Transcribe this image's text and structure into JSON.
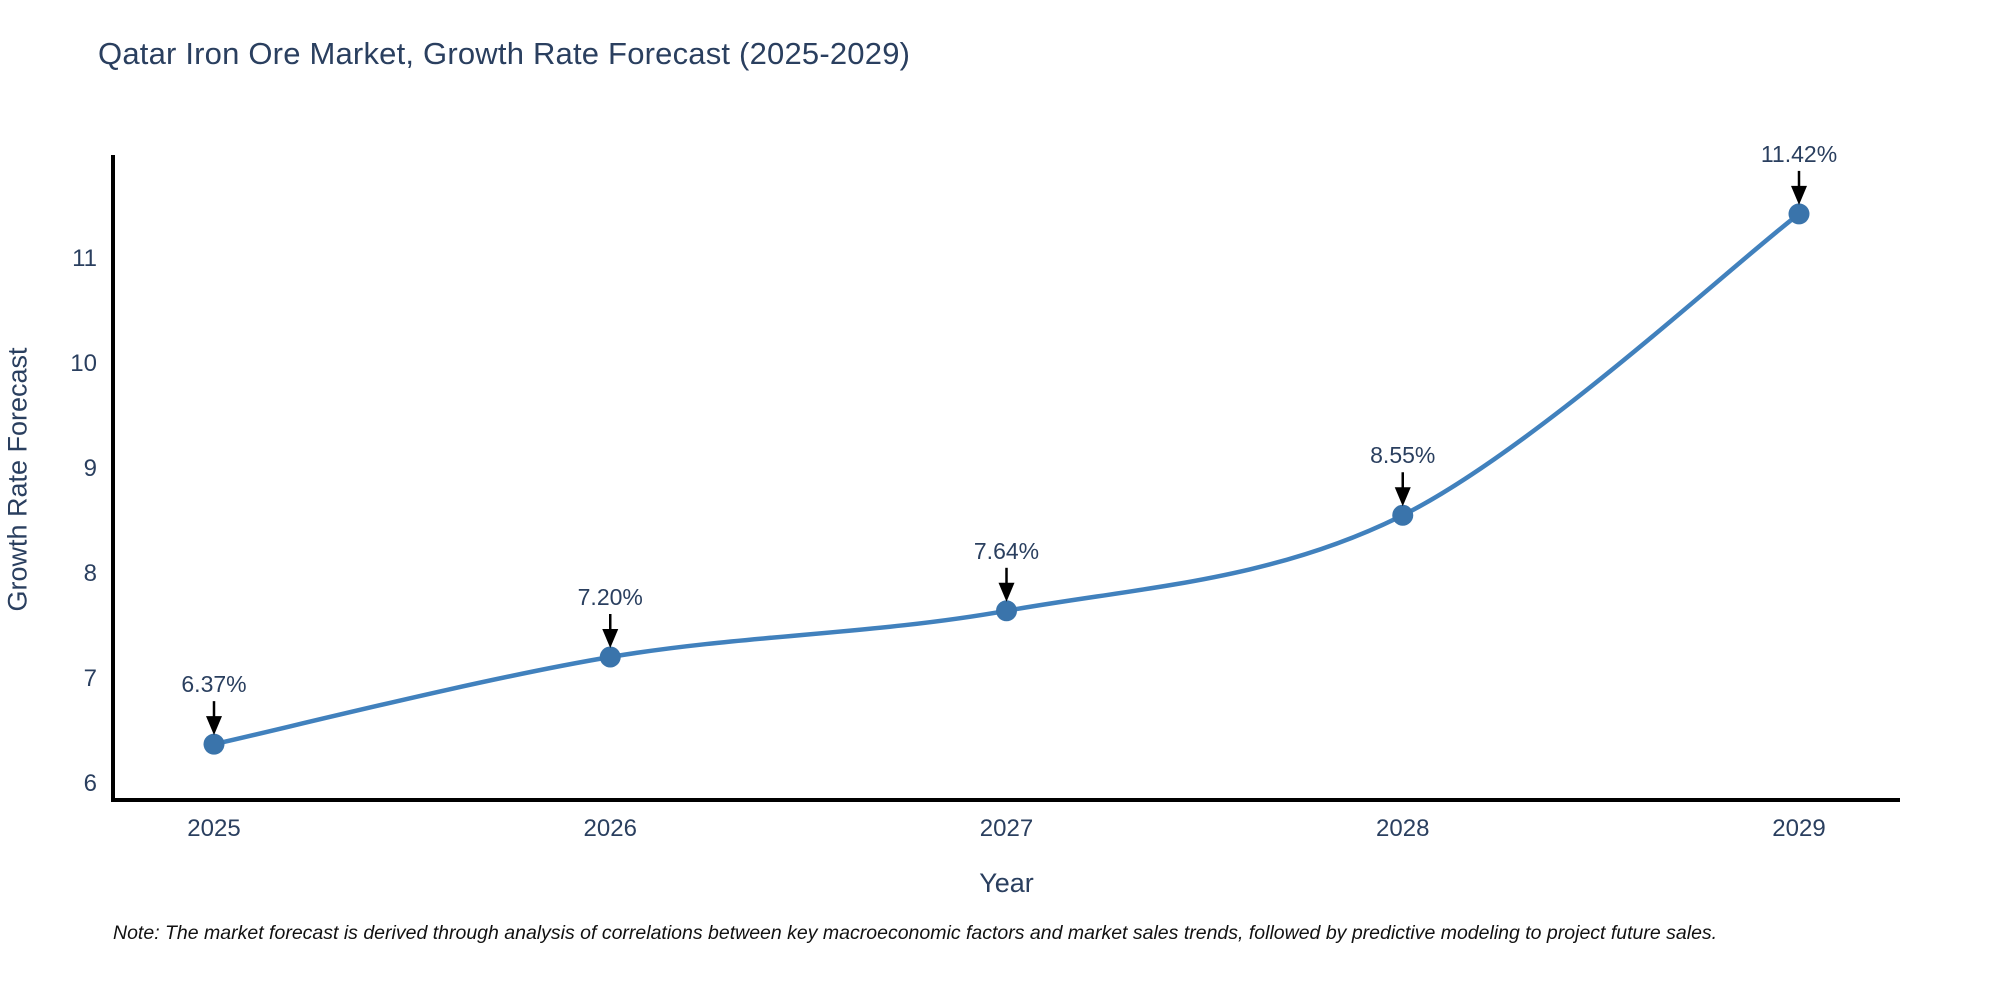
{
  "title": "Qatar Iron Ore Market, Growth Rate Forecast (2025-2029)",
  "footnote": "Note: The market forecast is derived through analysis of correlations between key macroeconomic factors and market sales trends, followed by predictive modeling to project future sales.",
  "chart_data": {
    "type": "line",
    "title": "Qatar Iron Ore Market, Growth Rate Forecast (2025-2029)",
    "categories": [
      "2025",
      "2026",
      "2027",
      "2028",
      "2029"
    ],
    "values": [
      6.37,
      7.2,
      7.64,
      8.55,
      11.42
    ],
    "point_labels": [
      "6.37%",
      "7.20%",
      "7.64%",
      "8.55%",
      "11.42%"
    ],
    "xlabel": "Year",
    "ylabel": "Growth Rate Forecast",
    "yticks": [
      6,
      7,
      8,
      9,
      10,
      11
    ],
    "ylim": [
      5.838,
      11.981
    ],
    "grid": false,
    "legend": "none",
    "annotations_style": "value label with black arrow pointing down at marker",
    "colors": {
      "line": "#4181bd",
      "marker": "#3a74ab",
      "axis": "#000000",
      "text": "#2a3f5f",
      "arrow": "#000000",
      "note_text": "#111111",
      "background": "#ffffff"
    }
  }
}
